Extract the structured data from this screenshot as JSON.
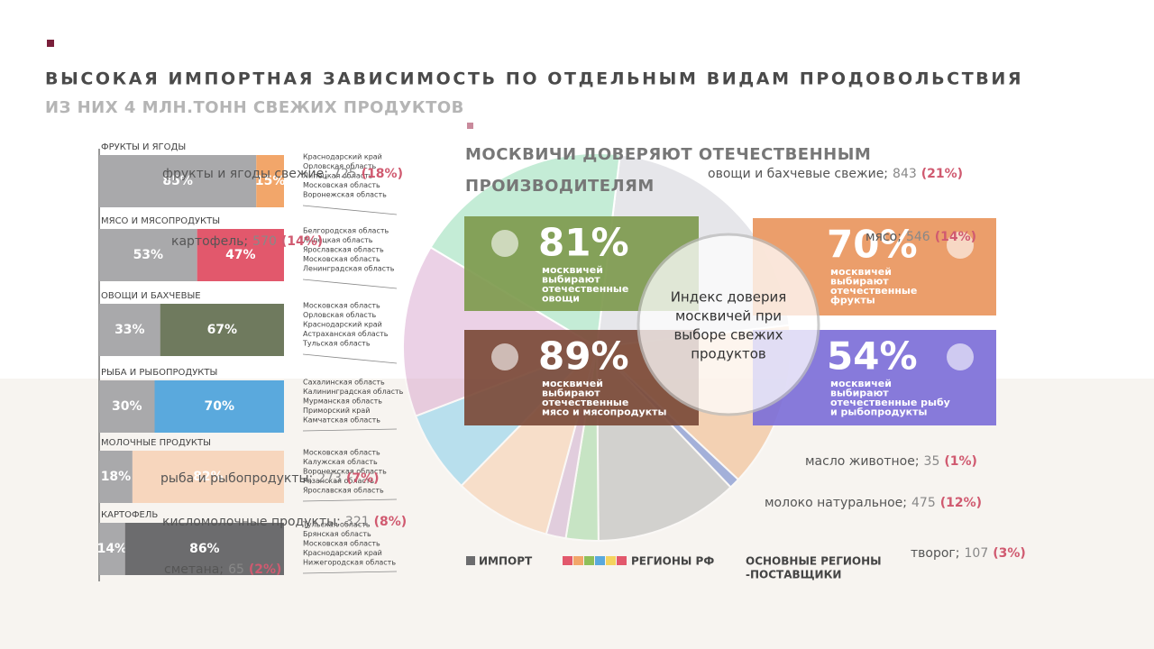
{
  "header": {
    "title": "ВЫСОКАЯ ИМПОРТНАЯ ЗАВИСИМОСТЬ ПО ОТДЕЛЬНЫМ ВИДАМ ПРОДОВОЛЬСТВИЯ",
    "subtitle": "ИЗ НИХ 4 МЛН.ТОНН СВЕЖИХ ПРОДУКТОВ"
  },
  "bars": [
    {
      "name": "ФРУКТЫ И ЯГОДЫ",
      "values": [
        85,
        15
      ],
      "value_labels": [
        "85%",
        "15%"
      ],
      "colors": [
        "#a9a9ab",
        "#f2a66a"
      ],
      "regions": [
        "Краснодарский край",
        "Орловская область",
        "Липецкая область",
        "Московская область",
        "Воронежская область"
      ]
    },
    {
      "name": "МЯСО И МЯСОПРОДУКТЫ",
      "values": [
        53,
        47
      ],
      "value_labels": [
        "53%",
        "47%"
      ],
      "colors": [
        "#a9a9ab",
        "#e2586c"
      ],
      "regions": [
        "Белгородская область",
        "Липецкая область",
        "Ярославская область",
        "Московская область",
        "Ленинградская область"
      ]
    },
    {
      "name": "ОВОЩИ И БАХЧЕВЫЕ",
      "values": [
        33,
        67
      ],
      "value_labels": [
        "33%",
        "67%"
      ],
      "colors": [
        "#a9a9ab",
        "#6f7a5e"
      ],
      "regions": [
        "Московская область",
        "Орловская область",
        "Краснодарский край",
        "Астраханская область",
        "Тульская область"
      ]
    },
    {
      "name": "РЫБА И РЫБОПРОДУКТЫ",
      "values": [
        30,
        70
      ],
      "value_labels": [
        "30%",
        "70%"
      ],
      "colors": [
        "#a9a9ab",
        "#5aa9dd"
      ],
      "regions": [
        "Сахалинская область",
        "Калининградская область",
        "Мурманская область",
        "Приморский край",
        "Камчатская область"
      ]
    },
    {
      "name": "МОЛОЧНЫЕ ПРОДУКТЫ",
      "values": [
        18,
        82
      ],
      "value_labels": [
        "18%",
        "82%"
      ],
      "colors": [
        "#a9a9ab",
        "#f7d6bd"
      ],
      "regions": [
        "Московская область",
        "Калужская область",
        "Воронежская область",
        "Рязанская область",
        "Ярославская область"
      ]
    },
    {
      "name": "КАРТОФЕЛЬ",
      "values": [
        14,
        86
      ],
      "value_labels": [
        "14%",
        "86%"
      ],
      "colors": [
        "#a9a9ab",
        "#6c6c6e"
      ],
      "regions": [
        "Тульская область",
        "Брянская область",
        "Московская область",
        "Краснодарский край",
        "Нижегородская область"
      ]
    }
  ],
  "legend": {
    "import": "ИМПОРТ",
    "import_color": "#6c6c6e",
    "regions": "РЕГИОНЫ РФ",
    "regions_colors": [
      "#e2586c",
      "#f2a66a",
      "#8fbf5a",
      "#5aa9dd",
      "#f4d35e",
      "#e2586c"
    ],
    "suppliers": [
      "ОСНОВНЫЕ РЕГИОНЫ",
      "-ПОСТАВЩИКИ"
    ]
  },
  "pie": {
    "slices": [
      {
        "name": "овощи  и бахчевые свежие;",
        "value": 843,
        "share": {
          "value": 21,
          "label": "(21%)"
        },
        "color": "#c9c9d2"
      },
      {
        "name": "мясо;",
        "value": 546,
        "share": {
          "value": 14,
          "label": "(14%)"
        },
        "color": "#f0a86a"
      },
      {
        "name": "масло животное;",
        "value": 35,
        "share": {
          "value": 1,
          "label": "(1%)"
        },
        "color": "#3f5fbf"
      },
      {
        "name": "молоко натуральное;",
        "value": 475,
        "share": {
          "value": 12,
          "label": "(12%)"
        },
        "color": "#a7a7a7"
      },
      {
        "name": "творог;",
        "value": 107,
        "share": {
          "value": 3,
          "label": "(3%)"
        },
        "color": "#8fd18f"
      },
      {
        "name": "сметана;",
        "value": 65,
        "share": {
          "value": 2,
          "label": "(2%)"
        },
        "color": "#c7a0c7"
      },
      {
        "name": "кисломолочные продукты;",
        "value": 321,
        "share": {
          "value": 8,
          "label": "(8%)"
        },
        "color": "#f7c49b"
      },
      {
        "name": "рыба и рыбопродукты;",
        "value": 273,
        "share": {
          "value": 7,
          "label": "(7%)"
        },
        "color": "#6ec6ea"
      },
      {
        "name": "картофель;",
        "value": 570,
        "share": {
          "value": 14,
          "label": "(14%)"
        },
        "color": "#d59ac8"
      },
      {
        "name": "фрукты и ягоды свежие;",
        "value": 725,
        "share": {
          "value": 18,
          "label": "(18%)"
        },
        "color": "#7ed6a6"
      }
    ]
  },
  "trust": {
    "title": [
      "МОСКВИЧИ ДОВЕРЯЮТ ОТЕЧЕСТВЕННЫМ",
      "ПРОИЗВОДИТЕЛЯМ"
    ],
    "center": [
      "Индекс доверия",
      "москвичей при",
      "выборе свежих",
      "продуктов"
    ],
    "cards": [
      {
        "percent": "81%",
        "text": [
          "москвичей",
          "выбирают",
          "отечественные",
          "овощи"
        ],
        "color": "#7e9a4e"
      },
      {
        "percent": "70%",
        "text": [
          "москвичей",
          "выбирают",
          "отечественные",
          "фрукты"
        ],
        "color": "#e9965e"
      },
      {
        "percent": "89%",
        "text": [
          "москвичей",
          "выбирают",
          "отечественные",
          "мясо и мясопродукты"
        ],
        "color": "#7b4a38"
      },
      {
        "percent": "54%",
        "text": [
          "москвичей",
          "выбирают",
          "отечественные рыбу",
          "и рыбопродукты"
        ],
        "color": "#7d6fd8"
      }
    ]
  }
}
